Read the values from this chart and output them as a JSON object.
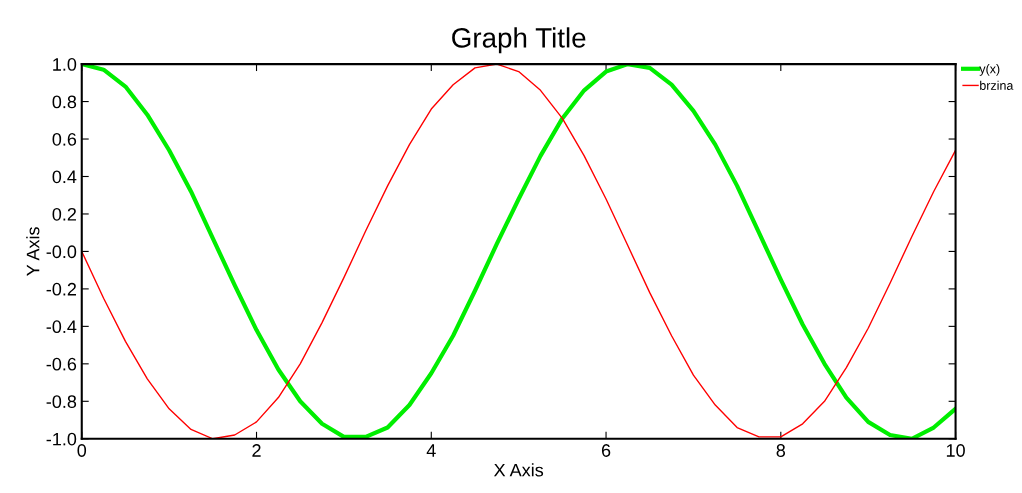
{
  "chart_data": {
    "type": "line",
    "title": "Graph Title",
    "xlabel": "X Axis",
    "ylabel": "Y Axis",
    "x": [
      0,
      0.25,
      0.5,
      0.75,
      1,
      1.25,
      1.5,
      1.75,
      2,
      2.25,
      2.5,
      2.75,
      3,
      3.25,
      3.5,
      3.75,
      4,
      4.25,
      4.5,
      4.75,
      5,
      5.25,
      5.5,
      5.75,
      6,
      6.25,
      6.5,
      6.75,
      7,
      7.25,
      7.5,
      7.75,
      8,
      8.25,
      8.5,
      8.75,
      9,
      9.25,
      9.5,
      9.75,
      10
    ],
    "series": [
      {
        "name": "y(x)",
        "color": "#00ee00",
        "values": [
          1,
          0.97,
          0.88,
          0.73,
          0.54,
          0.32,
          0.07,
          -0.18,
          -0.42,
          -0.63,
          -0.8,
          -0.92,
          -0.99,
          -0.99,
          -0.94,
          -0.82,
          -0.65,
          -0.45,
          -0.21,
          0.04,
          0.28,
          0.51,
          0.71,
          0.86,
          0.96,
          1,
          0.98,
          0.89,
          0.75,
          0.57,
          0.35,
          0.1,
          -0.15,
          -0.39,
          -0.6,
          -0.78,
          -0.91,
          -0.98,
          -1,
          -0.94,
          -0.84
        ]
      },
      {
        "name": "brzina",
        "color": "#ff0000",
        "values": [
          0,
          -0.25,
          -0.48,
          -0.68,
          -0.84,
          -0.95,
          -1,
          -0.98,
          -0.91,
          -0.78,
          -0.6,
          -0.38,
          -0.14,
          0.11,
          0.35,
          0.57,
          0.76,
          0.89,
          0.98,
          1,
          0.96,
          0.86,
          0.71,
          0.51,
          0.28,
          0.03,
          -0.22,
          -0.45,
          -0.66,
          -0.82,
          -0.94,
          -0.99,
          -0.99,
          -0.92,
          -0.8,
          -0.62,
          -0.41,
          -0.17,
          0.08,
          0.32,
          0.54
        ]
      }
    ],
    "xlim": [
      0,
      10
    ],
    "xticks": [
      0,
      2,
      4,
      6,
      8,
      10
    ],
    "ylim": [
      -1,
      1
    ],
    "yticks": [
      {
        "value": -1,
        "label": "-1.0"
      },
      {
        "value": -0.8,
        "label": "-0.8"
      },
      {
        "value": -0.6,
        "label": "-0.6"
      },
      {
        "value": -0.4,
        "label": "-0.4"
      },
      {
        "value": -0.2,
        "label": "-0.2"
      },
      {
        "value": 0,
        "label": "-0.0"
      },
      {
        "value": 0.2,
        "label": "0.2"
      },
      {
        "value": 0.4,
        "label": "0.4"
      },
      {
        "value": 0.6,
        "label": "0.6"
      },
      {
        "value": 0.8,
        "label": "0.8"
      },
      {
        "value": 1,
        "label": "1.0"
      }
    ],
    "grid": false,
    "legend": "top right",
    "marker": "none",
    "line_style": "solid"
  }
}
